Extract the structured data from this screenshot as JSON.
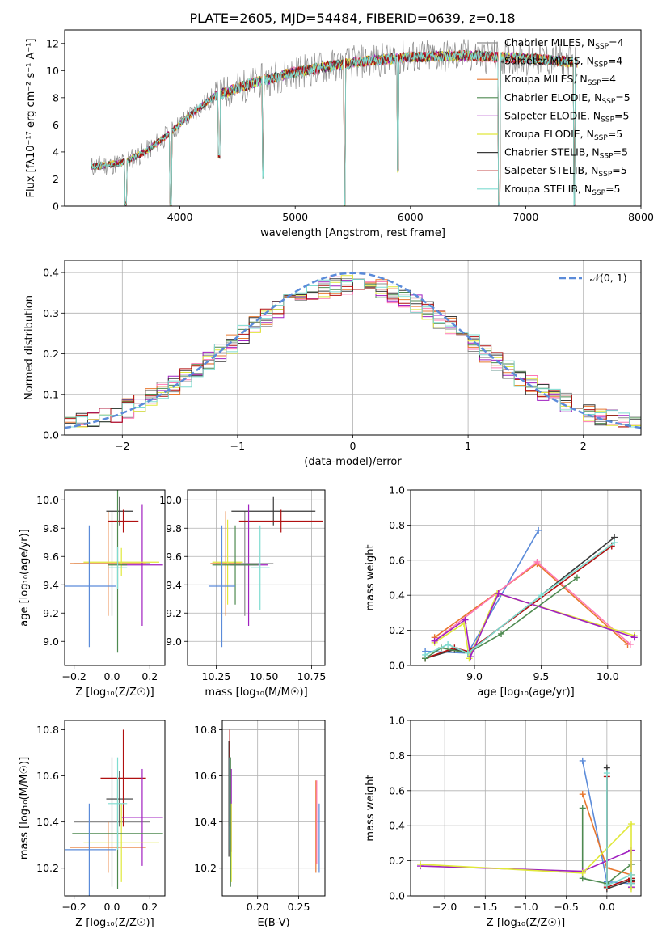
{
  "title": "PLATE=2605, MJD=54484, FIBERID=0639, z=0.18",
  "colors": {
    "chabrier_miles": "#8c8c8c",
    "salpeter_miles": "#ff77b4",
    "kroupa_miles": "#e8772e",
    "chabrier_elodie": "#4e8a50",
    "salpeter_elodie": "#a020c0",
    "kroupa_elodie": "#e0e83a",
    "chabrier_stelib": "#3a3a3a",
    "salpeter_stelib": "#b01010",
    "kroupa_stelib": "#7fdcd0",
    "gaussian": "#5b8bd9"
  },
  "legend_models": [
    {
      "base": "Chabrier MILES, N",
      "sub": "SSP",
      "tail": "=4",
      "color_key": "chabrier_miles"
    },
    {
      "base": "Salpeter MILES, N",
      "sub": "SSP",
      "tail": "=4",
      "color_key": "salpeter_miles"
    },
    {
      "base": "Kroupa MILES, N",
      "sub": "SSP",
      "tail": "=4",
      "color_key": "kroupa_miles"
    },
    {
      "base": "Chabrier ELODIE, N",
      "sub": "SSP",
      "tail": "=5",
      "color_key": "chabrier_elodie"
    },
    {
      "base": "Salpeter ELODIE, N",
      "sub": "SSP",
      "tail": "=5",
      "color_key": "salpeter_elodie"
    },
    {
      "base": "Kroupa ELODIE, N",
      "sub": "SSP",
      "tail": "=5",
      "color_key": "kroupa_elodie"
    },
    {
      "base": "Chabrier STELIB, N",
      "sub": "SSP",
      "tail": "=5",
      "color_key": "chabrier_stelib"
    },
    {
      "base": "Salpeter STELIB, N",
      "sub": "SSP",
      "tail": "=5",
      "color_key": "salpeter_stelib"
    },
    {
      "base": "Kroupa STELIB, N",
      "sub": "SSP",
      "tail": "=5",
      "color_key": "kroupa_stelib"
    }
  ],
  "chart_data": [
    {
      "type": "line",
      "panel": "spectrum",
      "xlabel": "wavelength [Angstrom, rest frame]",
      "ylabel": "Flux [fλ10⁻¹⁷ erg cm⁻² s⁻¹ A⁻¹]",
      "xlim": [
        3000,
        8000
      ],
      "ylim": [
        0,
        13
      ],
      "xticks": [
        "4000",
        "5000",
        "6000",
        "7000",
        "8000"
      ],
      "yticks": [
        "0",
        "2",
        "4",
        "6",
        "8",
        "10",
        "12"
      ],
      "legend": "top-right",
      "continuum": {
        "x": [
          3230,
          3500,
          3700,
          3900,
          4100,
          4300,
          4600,
          5000,
          5500,
          6000,
          6500,
          7000,
          7450
        ],
        "y": [
          2.9,
          3.2,
          4.0,
          5.3,
          6.8,
          8.1,
          9.0,
          9.9,
          10.6,
          11.0,
          11.1,
          10.9,
          10.6
        ]
      },
      "dips": [
        {
          "x": 3530,
          "y": 0
        },
        {
          "x": 3920,
          "y": 0
        },
        {
          "x": 4340,
          "y": 3.5
        },
        {
          "x": 4720,
          "y": 2.0
        },
        {
          "x": 5430,
          "y": 0
        },
        {
          "x": 5890,
          "y": 2.5
        },
        {
          "x": 6770,
          "y": 0
        },
        {
          "x": 7420,
          "y": 0
        }
      ]
    },
    {
      "type": "line",
      "panel": "residuals",
      "xlabel": "(data-model)/error",
      "ylabel": "Normed distribution",
      "xlim": [
        -2.5,
        2.5
      ],
      "ylim": [
        0,
        0.43
      ],
      "xticks": [
        "−2",
        "−1",
        "0",
        "1",
        "2"
      ],
      "yticks": [
        "0.0",
        "0.1",
        "0.2",
        "0.3",
        "0.4"
      ],
      "grid": true,
      "legend": "top-right",
      "legend_label": "𝒩(0, 1)",
      "gaussian": {
        "mu": 0,
        "sigma": 1
      },
      "histograms": {
        "bin_width": 0.1,
        "x_start": -2.5,
        "bins": 50,
        "models": [
          "chabrier_miles",
          "salpeter_miles",
          "kroupa_miles",
          "chabrier_elodie",
          "salpeter_elodie",
          "kroupa_elodie",
          "chabrier_stelib",
          "salpeter_stelib",
          "kroupa_stelib"
        ]
      }
    },
    {
      "type": "scatter",
      "panel": "age_vs_Z",
      "xlabel": "Z [log₁₀(Z/Z☉)]",
      "ylabel": "age  [log₁₀(age/yr)]",
      "xlim": [
        -0.25,
        0.28
      ],
      "ylim": [
        8.83,
        10.07
      ],
      "xticks": [
        "−0.2",
        "0.0",
        "0.2"
      ],
      "yticks": [
        "9.0",
        "9.2",
        "9.4",
        "9.6",
        "9.8",
        "10.0"
      ],
      "points": [
        {
          "model": "chabrier_miles",
          "x": 0.0,
          "y": 9.55,
          "xerr": 0.2,
          "yerr": 0.37
        },
        {
          "model": "kroupa_miles",
          "x": -0.02,
          "y": 9.55,
          "xerr": 0.2,
          "yerr": 0.37
        },
        {
          "model": "chabrier_stelib",
          "x": 0.04,
          "y": 9.92,
          "xerr": 0.07,
          "yerr": 0.1
        },
        {
          "model": "salpeter_stelib",
          "x": 0.06,
          "y": 9.85,
          "xerr": 0.08,
          "yerr": 0.08
        },
        {
          "model": "salpeter_elodie",
          "x": 0.16,
          "y": 9.54,
          "xerr": 0.11,
          "yerr": 0.43
        },
        {
          "model": "kroupa_elodie",
          "x": 0.05,
          "y": 9.56,
          "xerr": 0.2,
          "yerr": 0.1
        },
        {
          "model": "chabrier_elodie",
          "x": 0.03,
          "y": 9.54,
          "xerr": 0.05,
          "yerr": 0.62
        },
        {
          "model": "gaussian",
          "x": -0.12,
          "y": 9.39,
          "xerr": 0.14,
          "yerr": 0.43
        },
        {
          "model": "kroupa_stelib",
          "x": 0.03,
          "y": 9.52,
          "xerr": 0.05,
          "yerr": 0.15
        }
      ]
    },
    {
      "type": "scatter",
      "panel": "age_vs_mass",
      "xlabel": "mass [log₁₀(M/M☉)]",
      "ylabel": "",
      "xlim": [
        10.1,
        10.82
      ],
      "ylim": [
        8.83,
        10.07
      ],
      "xticks": [
        "10.25",
        "10.50",
        "10.75"
      ],
      "yticks": [
        "9.0",
        "9.2",
        "9.4",
        "9.6",
        "9.8",
        "10.0"
      ],
      "points": [
        {
          "model": "chabrier_miles",
          "x": 10.4,
          "y": 9.55,
          "xerr": 0.15,
          "yerr": 0.37
        },
        {
          "model": "kroupa_miles",
          "x": 10.3,
          "y": 9.55,
          "xerr": 0.08,
          "yerr": 0.37
        },
        {
          "model": "chabrier_stelib",
          "x": 10.55,
          "y": 9.92,
          "xerr": 0.22,
          "yerr": 0.1
        },
        {
          "model": "salpeter_stelib",
          "x": 10.59,
          "y": 9.85,
          "xerr": 0.22,
          "yerr": 0.08
        },
        {
          "model": "salpeter_elodie",
          "x": 10.42,
          "y": 9.54,
          "xerr": 0.1,
          "yerr": 0.43
        },
        {
          "model": "kroupa_elodie",
          "x": 10.31,
          "y": 9.56,
          "xerr": 0.08,
          "yerr": 0.3
        },
        {
          "model": "chabrier_elodie",
          "x": 10.35,
          "y": 9.54,
          "xerr": 0.12,
          "yerr": 0.28
        },
        {
          "model": "gaussian",
          "x": 10.28,
          "y": 9.39,
          "xerr": 0.07,
          "yerr": 0.43
        },
        {
          "model": "kroupa_stelib",
          "x": 10.48,
          "y": 9.52,
          "xerr": 0.05,
          "yerr": 0.3
        }
      ]
    },
    {
      "type": "line",
      "panel": "weight_vs_age",
      "xlabel": "age  [log₁₀(age/yr)]",
      "ylabel": "mass weight",
      "xlim": [
        8.52,
        10.25
      ],
      "ylim": [
        0,
        1.0
      ],
      "xticks": [
        "9.0",
        "9.5",
        "10.0"
      ],
      "yticks": [
        "0.0",
        "0.2",
        "0.4",
        "0.6",
        "0.8",
        "1.0"
      ],
      "series": [
        {
          "model": "gaussian",
          "x": [
            8.63,
            8.95,
            9.48
          ],
          "y": [
            0.08,
            0.07,
            0.77
          ]
        },
        {
          "model": "kroupa_miles",
          "x": [
            8.7,
            9.47,
            10.15
          ],
          "y": [
            0.16,
            0.58,
            0.12
          ]
        },
        {
          "model": "salpeter_miles",
          "x": [
            8.7,
            9.47,
            10.17
          ],
          "y": [
            0.14,
            0.59,
            0.12
          ]
        },
        {
          "model": "chabrier_stelib",
          "x": [
            8.63,
            8.85,
            8.95,
            10.05
          ],
          "y": [
            0.04,
            0.09,
            0.07,
            0.73
          ]
        },
        {
          "model": "salpeter_stelib",
          "x": [
            8.63,
            8.85,
            8.95,
            10.03
          ],
          "y": [
            0.04,
            0.1,
            0.08,
            0.68
          ]
        },
        {
          "model": "chabrier_elodie",
          "x": [
            8.63,
            8.75,
            8.95,
            9.2,
            9.77
          ],
          "y": [
            0.04,
            0.1,
            0.07,
            0.18,
            0.5
          ]
        },
        {
          "model": "kroupa_elodie",
          "x": [
            8.7,
            8.92,
            8.96,
            9.17,
            10.2
          ],
          "y": [
            0.13,
            0.24,
            0.04,
            0.41,
            0.17
          ]
        },
        {
          "model": "salpeter_elodie",
          "x": [
            8.7,
            8.93,
            8.97,
            9.18,
            10.2
          ],
          "y": [
            0.14,
            0.26,
            0.05,
            0.41,
            0.16
          ]
        },
        {
          "model": "kroupa_stelib",
          "x": [
            8.63,
            8.8,
            8.95,
            9.5,
            10.05
          ],
          "y": [
            0.06,
            0.12,
            0.07,
            0.4,
            0.7
          ]
        }
      ]
    },
    {
      "type": "scatter",
      "panel": "mass_vs_Z",
      "xlabel": "Z [log₁₀(Z/Z☉)]",
      "ylabel": "mass [log₁₀(M/M☉)]",
      "xlim": [
        -0.25,
        0.28
      ],
      "ylim": [
        10.08,
        10.84
      ],
      "xticks": [
        "−0.2",
        "0.0",
        "0.2"
      ],
      "yticks": [
        "10.2",
        "10.4",
        "10.6",
        "10.8"
      ],
      "points": [
        {
          "model": "chabrier_miles",
          "x": 0.0,
          "y": 10.4,
          "xerr": 0.2,
          "yerr": 0.28
        },
        {
          "model": "kroupa_miles",
          "x": -0.02,
          "y": 10.29,
          "xerr": 0.2,
          "yerr": 0.11
        },
        {
          "model": "chabrier_stelib",
          "x": 0.04,
          "y": 10.5,
          "xerr": 0.07,
          "yerr": 0.12
        },
        {
          "model": "salpeter_stelib",
          "x": 0.06,
          "y": 10.59,
          "xerr": 0.12,
          "yerr": 0.21
        },
        {
          "model": "salpeter_elodie",
          "x": 0.16,
          "y": 10.42,
          "xerr": 0.11,
          "yerr": 0.21
        },
        {
          "model": "kroupa_elodie",
          "x": 0.05,
          "y": 10.31,
          "xerr": 0.2,
          "yerr": 0.17
        },
        {
          "model": "chabrier_elodie",
          "x": 0.03,
          "y": 10.35,
          "xerr": 0.24,
          "yerr": 0.24
        },
        {
          "model": "gaussian",
          "x": -0.12,
          "y": 10.28,
          "xerr": 0.14,
          "yerr": 0.2
        },
        {
          "model": "kroupa_stelib",
          "x": 0.03,
          "y": 10.48,
          "xerr": 0.05,
          "yerr": 0.2
        }
      ]
    },
    {
      "type": "scatter",
      "panel": "mass_vs_ebv",
      "xlabel": "E(B-V)",
      "ylabel": "",
      "xlim": [
        0.157,
        0.282
      ],
      "ylim": [
        10.08,
        10.84
      ],
      "xticks": [
        "0.20",
        "0.25"
      ],
      "yticks": [
        "10.2",
        "10.4",
        "10.6",
        "10.8"
      ],
      "points": [
        {
          "model": "chabrier_miles",
          "x": 0.167,
          "y": 10.4,
          "yerr": 0.28
        },
        {
          "model": "kroupa_miles",
          "x": 0.271,
          "y": 10.38,
          "yerr": 0.2
        },
        {
          "model": "salpeter_miles",
          "x": 0.272,
          "y": 10.4,
          "yerr": 0.18
        },
        {
          "model": "chabrier_stelib",
          "x": 0.165,
          "y": 10.5,
          "yerr": 0.25
        },
        {
          "model": "salpeter_stelib",
          "x": 0.166,
          "y": 10.59,
          "yerr": 0.21
        },
        {
          "model": "salpeter_elodie",
          "x": 0.168,
          "y": 10.45,
          "yerr": 0.18
        },
        {
          "model": "kroupa_elodie",
          "x": 0.168,
          "y": 10.31,
          "yerr": 0.17
        },
        {
          "model": "chabrier_elodie",
          "x": 0.167,
          "y": 10.4,
          "yerr": 0.28
        },
        {
          "model": "gaussian",
          "x": 0.275,
          "y": 10.33,
          "yerr": 0.15
        },
        {
          "model": "kroupa_stelib",
          "x": 0.166,
          "y": 10.48,
          "yerr": 0.2
        }
      ]
    },
    {
      "type": "line",
      "panel": "weight_vs_Z",
      "xlabel": "Z [log₁₀(Z/Z☉)]",
      "ylabel": "mass weight",
      "xlim": [
        -2.42,
        0.42
      ],
      "ylim": [
        0,
        1.0
      ],
      "xticks": [
        "−2.0",
        "−1.5",
        "−1.0",
        "−0.5",
        "0.0"
      ],
      "yticks": [
        "0.0",
        "0.2",
        "0.4",
        "0.6",
        "0.8",
        "1.0"
      ],
      "series": [
        {
          "model": "gaussian",
          "x": [
            -0.3,
            0.0,
            0.3
          ],
          "y": [
            0.77,
            0.08,
            0.07
          ]
        },
        {
          "model": "kroupa_miles",
          "x": [
            -0.3,
            0.0,
            0.3
          ],
          "y": [
            0.58,
            0.16,
            0.12
          ]
        },
        {
          "model": "chabrier_stelib",
          "x": [
            0.0,
            0.0,
            0.3,
            0.3
          ],
          "y": [
            0.73,
            0.04,
            0.09,
            0.07
          ]
        },
        {
          "model": "salpeter_stelib",
          "x": [
            0.0,
            0.0,
            0.3,
            0.3
          ],
          "y": [
            0.68,
            0.05,
            0.1,
            0.08
          ]
        },
        {
          "model": "chabrier_elodie",
          "x": [
            -0.3,
            -0.3,
            0.0,
            0.3
          ],
          "y": [
            0.5,
            0.1,
            0.07,
            0.18
          ]
        },
        {
          "model": "salpeter_elodie",
          "x": [
            -2.3,
            -0.3,
            0.3,
            0.3
          ],
          "y": [
            0.17,
            0.14,
            0.26,
            0.05
          ]
        },
        {
          "model": "kroupa_elodie",
          "x": [
            -2.3,
            -0.3,
            0.3,
            0.3
          ],
          "y": [
            0.18,
            0.13,
            0.41,
            0.04
          ]
        },
        {
          "model": "kroupa_stelib",
          "x": [
            0.0,
            0.0,
            0.3,
            0.3
          ],
          "y": [
            0.7,
            0.06,
            0.12,
            0.07
          ]
        }
      ]
    }
  ]
}
